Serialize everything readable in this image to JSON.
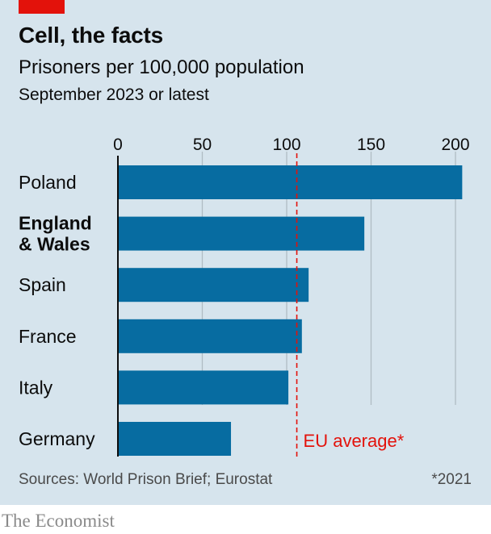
{
  "header": {
    "title": "Cell, the facts",
    "subtitle": "Prisoners per 100,000 population",
    "date_note": "September 2023 or latest"
  },
  "footer": {
    "source": "Sources: World Prison Brief; Eurostat",
    "note": "*2021",
    "brand": "The Economist"
  },
  "colors": {
    "background": "#d6e4ed",
    "bar": "#076ca1",
    "accent_red": "#e3120b",
    "grid": "#b0bcc4"
  },
  "chart_data": {
    "type": "bar",
    "orientation": "horizontal",
    "categories": [
      "Poland",
      "England\n& Wales",
      "Spain",
      "France",
      "Italy",
      "Germany"
    ],
    "bold_categories": [
      "England\n& Wales"
    ],
    "values": [
      204,
      146,
      113,
      109,
      101,
      67
    ],
    "x_ticks": [
      0,
      50,
      100,
      150,
      200
    ],
    "xlim": [
      0,
      205
    ],
    "grid": true,
    "reference_line": {
      "value": 106,
      "label": "EU average*",
      "style": "dashed",
      "color": "#e3120b"
    }
  }
}
